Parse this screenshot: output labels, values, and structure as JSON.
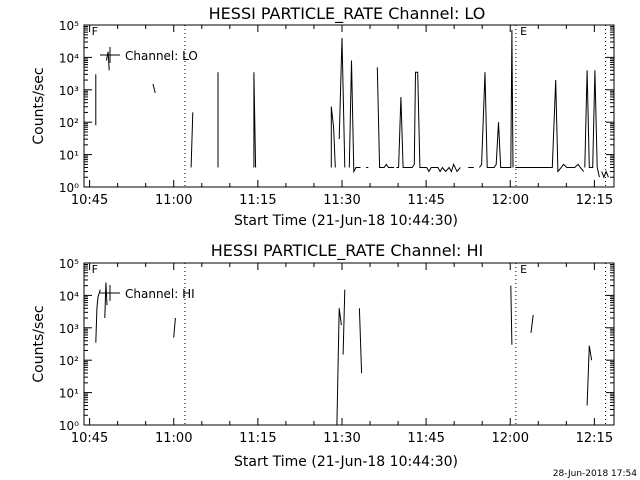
{
  "chart_data": [
    {
      "type": "line",
      "title": "HESSI PARTICLE_RATE Channel: LO",
      "xlabel": "Start Time (21-Jun-18 10:44:30)",
      "ylabel": "Counts/sec",
      "yscale": "log",
      "xlim": [
        -0.5,
        94
      ],
      "ylim": [
        1,
        100000
      ],
      "xticks": [
        {
          "x": 0.5,
          "label": "10:45"
        },
        {
          "x": 15.5,
          "label": "11:00"
        },
        {
          "x": 30.5,
          "label": "11:15"
        },
        {
          "x": 45.5,
          "label": "11:30"
        },
        {
          "x": 60.5,
          "label": "11:45"
        },
        {
          "x": 75.5,
          "label": "12:00"
        },
        {
          "x": 90.5,
          "label": "12:15"
        }
      ],
      "yticks": [
        {
          "v": 1,
          "label": "10⁰"
        },
        {
          "v": 10,
          "label": "10¹"
        },
        {
          "v": 100,
          "label": "10²"
        },
        {
          "v": 1000,
          "label": "10³"
        },
        {
          "v": 10000,
          "label": "10⁴"
        },
        {
          "v": 100000,
          "label": "10⁵"
        }
      ],
      "vlines": [
        17.5,
        76.5,
        92.5
      ],
      "markers": [
        {
          "x": 0.5,
          "label": "F"
        },
        {
          "x": 76.9,
          "label": "E"
        }
      ],
      "legend": {
        "label": "Channel: LO",
        "position": "top-left"
      },
      "series": [
        {
          "points": [
            [
              1.6,
              80
            ],
            [
              1.6,
              3000
            ]
          ]
        },
        {
          "points": [
            [
              3.5,
              8000
            ],
            [
              3.8,
              15000
            ],
            [
              4.0,
              4000
            ]
          ]
        },
        {
          "points": [
            [
              11.8,
              1500
            ],
            [
              12.2,
              800
            ]
          ]
        },
        {
          "points": [
            [
              18.6,
              4
            ],
            [
              18.9,
              200
            ]
          ]
        },
        {
          "points": [
            [
              23.4,
              4
            ],
            [
              23.4,
              3500
            ]
          ]
        },
        {
          "points": [
            [
              29.8,
              4
            ],
            [
              29.8,
              3500
            ],
            [
              30.1,
              4
            ]
          ]
        },
        {
          "points": [
            [
              38.8,
              4
            ],
            [
              38.8,
              4
            ]
          ]
        },
        {
          "points": [
            [
              43.6,
              4
            ],
            [
              43.6,
              300
            ],
            [
              44.0,
              70
            ],
            [
              44.3,
              4
            ]
          ]
        },
        {
          "points": [
            [
              45.0,
              30
            ],
            [
              45.5,
              40000
            ],
            [
              46.0,
              4
            ]
          ]
        },
        {
          "points": [
            [
              46.8,
              4
            ],
            [
              47.2,
              8000
            ],
            [
              47.6,
              3
            ],
            [
              48.0,
              4
            ],
            [
              48.4,
              4
            ],
            [
              48.8,
              4
            ]
          ]
        },
        {
          "points": [
            [
              49.8,
              4
            ],
            [
              50.2,
              4
            ]
          ]
        },
        {
          "points": [
            [
              51.8,
              5000
            ],
            [
              52.2,
              4
            ],
            [
              52.6,
              4
            ],
            [
              53.0,
              4
            ],
            [
              53.4,
              5
            ],
            [
              53.8,
              4
            ],
            [
              54.2,
              4
            ],
            [
              54.8,
              4
            ]
          ]
        },
        {
          "points": [
            [
              55.2,
              4
            ],
            [
              55.6,
              4
            ],
            [
              56.0,
              600
            ],
            [
              56.4,
              4
            ],
            [
              56.8,
              4
            ],
            [
              57.2,
              4
            ],
            [
              58.0,
              4
            ],
            [
              58.4,
              5
            ],
            [
              58.6,
              3500
            ],
            [
              59.0,
              3500
            ],
            [
              59.4,
              4
            ],
            [
              60.0,
              4
            ],
            [
              60.6,
              4
            ],
            [
              61.0,
              3
            ],
            [
              61.4,
              4
            ],
            [
              62.0,
              4
            ],
            [
              62.6,
              4
            ],
            [
              63.0,
              3
            ],
            [
              63.4,
              4
            ],
            [
              64.0,
              3
            ],
            [
              64.6,
              4
            ],
            [
              65.0,
              3
            ],
            [
              65.4,
              5
            ],
            [
              66.0,
              3
            ],
            [
              66.6,
              4
            ]
          ]
        },
        {
          "points": [
            [
              68.0,
              4
            ],
            [
              68.4,
              4
            ],
            [
              69.0,
              4
            ]
          ]
        },
        {
          "points": [
            [
              70.0,
              4
            ],
            [
              70.4,
              5
            ],
            [
              71.0,
              3500
            ],
            [
              71.4,
              4
            ],
            [
              72.0,
              4
            ],
            [
              72.6,
              4
            ],
            [
              73.0,
              5
            ],
            [
              73.4,
              100
            ],
            [
              73.8,
              4
            ],
            [
              74.4,
              4
            ],
            [
              75.0,
              4
            ],
            [
              75.6,
              4
            ],
            [
              75.8,
              70000
            ],
            [
              76.0,
              4
            ]
          ]
        },
        {
          "points": [
            [
              76.4,
              4
            ],
            [
              77.0,
              4
            ],
            [
              78.0,
              4
            ],
            [
              79.0,
              4
            ],
            [
              80.0,
              4
            ],
            [
              81.0,
              4
            ],
            [
              82.0,
              4
            ],
            [
              83.0,
              4
            ],
            [
              83.6,
              2000
            ],
            [
              84.0,
              3
            ],
            [
              84.6,
              4
            ],
            [
              85.0,
              5
            ],
            [
              85.6,
              4
            ],
            [
              86.4,
              4
            ],
            [
              87.0,
              4
            ],
            [
              87.6,
              5
            ],
            [
              88.0,
              4
            ],
            [
              88.6,
              3
            ]
          ]
        },
        {
          "points": [
            [
              88.8,
              4
            ],
            [
              89.2,
              4000
            ],
            [
              89.6,
              4
            ],
            [
              90.2,
              4
            ],
            [
              90.6,
              4000
            ],
            [
              91.0,
              4
            ],
            [
              91.4,
              2
            ]
          ]
        },
        {
          "points": [
            [
              91.8,
              3
            ],
            [
              92.2,
              2
            ],
            [
              92.6,
              3
            ],
            [
              93.0,
              2
            ]
          ]
        }
      ]
    },
    {
      "type": "line",
      "title": "HESSI PARTICLE_RATE Channel: HI",
      "xlabel": "Start Time (21-Jun-18 10:44:30)",
      "ylabel": "Counts/sec",
      "yscale": "log",
      "xlim": [
        -0.5,
        94
      ],
      "ylim": [
        1,
        100000
      ],
      "xticks": [
        {
          "x": 0.5,
          "label": "10:45"
        },
        {
          "x": 15.5,
          "label": "11:00"
        },
        {
          "x": 30.5,
          "label": "11:15"
        },
        {
          "x": 45.5,
          "label": "11:30"
        },
        {
          "x": 60.5,
          "label": "11:45"
        },
        {
          "x": 75.5,
          "label": "12:00"
        },
        {
          "x": 90.5,
          "label": "12:15"
        }
      ],
      "yticks": [
        {
          "v": 1,
          "label": "10⁰"
        },
        {
          "v": 10,
          "label": "10¹"
        },
        {
          "v": 100,
          "label": "10²"
        },
        {
          "v": 1000,
          "label": "10³"
        },
        {
          "v": 10000,
          "label": "10⁴"
        },
        {
          "v": 100000,
          "label": "10⁵"
        }
      ],
      "vlines": [
        17.5,
        76.5,
        92.5
      ],
      "markers": [
        {
          "x": 0.5,
          "label": "F"
        },
        {
          "x": 76.9,
          "label": "E"
        }
      ],
      "legend": {
        "label": "Channel: HI",
        "position": "top-left"
      },
      "series": [
        {
          "points": [
            [
              1.6,
              350
            ],
            [
              1.8,
              4000
            ],
            [
              2.0,
              9000
            ],
            [
              2.4,
              15000
            ]
          ]
        },
        {
          "points": [
            [
              3.2,
              2000
            ],
            [
              3.4,
              25000
            ],
            [
              3.6,
              5000
            ]
          ]
        },
        {
          "points": [
            [
              15.5,
              500
            ],
            [
              15.8,
              2000
            ]
          ]
        },
        {
          "points": [
            [
              44.6,
              1
            ],
            [
              45.0,
              4000
            ],
            [
              45.4,
              1200
            ]
          ]
        },
        {
          "points": [
            [
              45.7,
              150
            ],
            [
              46.0,
              15000
            ]
          ]
        },
        {
          "points": [
            [
              48.6,
              4000
            ],
            [
              49.0,
              40
            ]
          ]
        },
        {
          "points": [
            [
              75.6,
              20000
            ],
            [
              75.8,
              300
            ]
          ]
        },
        {
          "points": [
            [
              79.2,
              700
            ],
            [
              79.6,
              2500
            ]
          ]
        },
        {
          "points": [
            [
              89.2,
              4
            ],
            [
              89.6,
              280
            ],
            [
              90.0,
              100
            ]
          ]
        }
      ]
    }
  ],
  "footer": {
    "timestamp": "28-Jun-2018 17:54"
  }
}
